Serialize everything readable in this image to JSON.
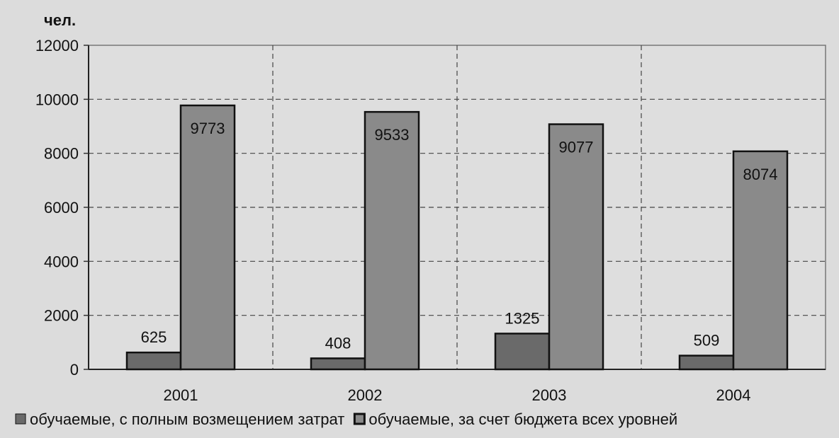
{
  "chart_data": {
    "type": "bar",
    "ylabel": "чел.",
    "categories": [
      "2001",
      "2002",
      "2003",
      "2004"
    ],
    "series": [
      {
        "name": "обучаемые, с полным возмещением затрат",
        "values": [
          625,
          408,
          1325,
          509
        ],
        "color": "#6a6a6a"
      },
      {
        "name": "обучаемые, за счет бюджета всех уровней",
        "values": [
          9773,
          9533,
          9077,
          8074
        ],
        "color": "#8a8a8a"
      }
    ],
    "ylim": [
      0,
      12000
    ],
    "yticks": [
      0,
      2000,
      4000,
      6000,
      8000,
      10000,
      12000
    ],
    "grid": true,
    "legend": "bottom"
  }
}
